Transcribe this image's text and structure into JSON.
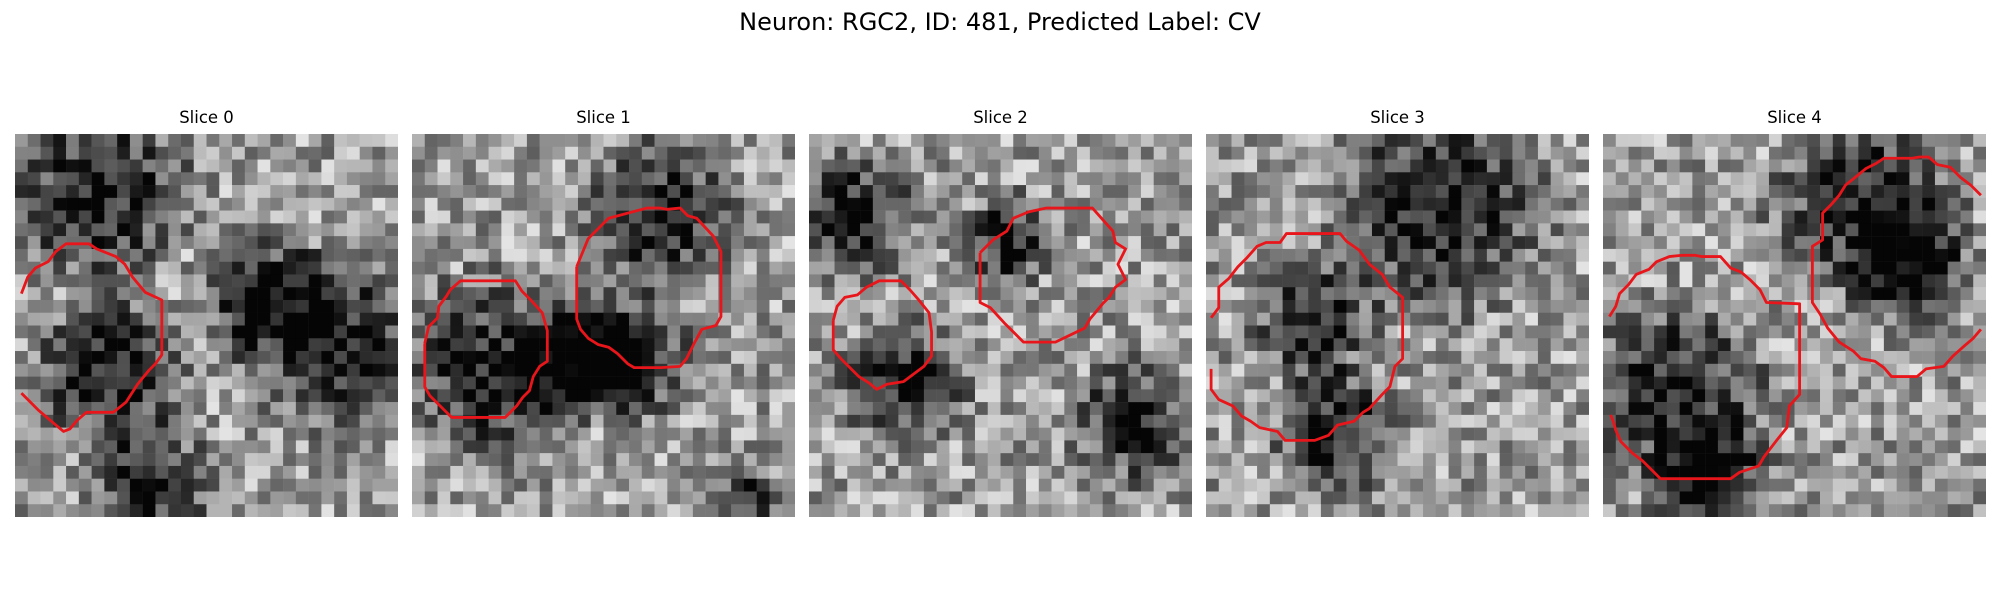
{
  "figure": {
    "title": "Neuron: RGC2, ID: 481, Predicted Label: CV",
    "panels": [
      {
        "label": "Slice 0"
      },
      {
        "label": "Slice 1"
      },
      {
        "label": "Slice 2"
      },
      {
        "label": "Slice 3"
      },
      {
        "label": "Slice 4"
      }
    ],
    "contour_color": "#e8161b",
    "colormap": "grayscale"
  }
}
